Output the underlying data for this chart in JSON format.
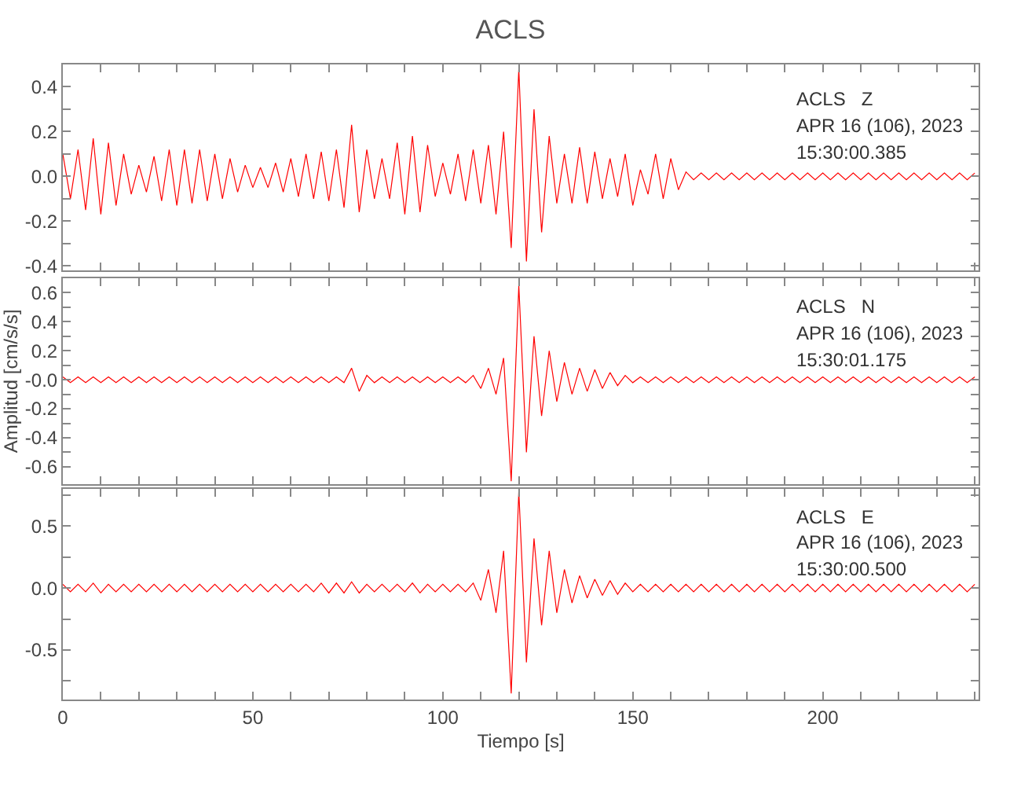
{
  "chart_data": [
    {
      "type": "line",
      "title": "ACLS",
      "annotations": [
        "ACLS   Z",
        "APR 16 (106), 2023",
        "15:30:00.385"
      ],
      "tick_labels": "y",
      "xlim": [
        0,
        241
      ],
      "xticks": [
        0,
        {
          "value": 10,
          "label": null
        },
        {
          "value": 20,
          "label": null
        },
        {
          "value": 30,
          "label": null
        },
        {
          "value": 40,
          "label": null
        },
        50,
        {
          "value": 60,
          "label": null
        },
        {
          "value": 70,
          "label": null
        },
        {
          "value": 80,
          "label": null
        },
        {
          "value": 90,
          "label": null
        },
        100,
        {
          "value": 110,
          "label": null
        },
        {
          "value": 120,
          "label": null
        },
        {
          "value": 130,
          "label": null
        },
        {
          "value": 140,
          "label": null
        },
        150,
        {
          "value": 160,
          "label": null
        },
        {
          "value": 170,
          "label": null
        },
        {
          "value": 180,
          "label": null
        },
        {
          "value": 190,
          "label": null
        },
        200,
        {
          "value": 210,
          "label": null
        },
        {
          "value": 220,
          "label": null
        },
        {
          "value": 230,
          "label": null
        },
        {
          "value": 240,
          "label": null
        }
      ],
      "ylim": [
        -0.42,
        0.5
      ],
      "yticks": [
        -0.4,
        {
          "value": -0.3,
          "label": null
        },
        -0.2,
        {
          "value": -0.1,
          "label": null
        },
        {
          "value": 0,
          "label": "0.0"
        },
        {
          "value": 0.1,
          "label": null
        },
        0.2,
        {
          "value": 0.3,
          "label": null
        },
        0.4
      ],
      "x": [
        0,
        2,
        4,
        6,
        8,
        10,
        12,
        14,
        16,
        18,
        20,
        22,
        24,
        26,
        28,
        30,
        32,
        34,
        36,
        38,
        40,
        42,
        44,
        46,
        48,
        50,
        52,
        54,
        56,
        58,
        60,
        62,
        64,
        66,
        68,
        70,
        72,
        74,
        76,
        78,
        80,
        82,
        84,
        86,
        88,
        90,
        92,
        94,
        96,
        98,
        100,
        102,
        104,
        106,
        108,
        110,
        112,
        114,
        116,
        118,
        120,
        122,
        124,
        126,
        128,
        130,
        132,
        134,
        136,
        138,
        140,
        142,
        144,
        146,
        148,
        150,
        152,
        154,
        156,
        158,
        160,
        162,
        164,
        166,
        168,
        170,
        172,
        174,
        176,
        178,
        180,
        182,
        184,
        186,
        188,
        190,
        192,
        194,
        196,
        198,
        200,
        202,
        204,
        206,
        208,
        210,
        212,
        214,
        216,
        218,
        220,
        222,
        224,
        226,
        228,
        230,
        232,
        234,
        236,
        238,
        240
      ],
      "series": [
        {
          "color": "#ff0000",
          "values": [
            0.1,
            -0.1,
            0.12,
            -0.15,
            0.17,
            -0.17,
            0.15,
            -0.13,
            0.1,
            -0.08,
            0.05,
            -0.07,
            0.09,
            -0.11,
            0.12,
            -0.13,
            0.12,
            -0.12,
            0.12,
            -0.11,
            0.1,
            -0.1,
            0.08,
            -0.07,
            0.05,
            -0.05,
            0.04,
            -0.05,
            0.06,
            -0.07,
            0.08,
            -0.09,
            0.1,
            -0.1,
            0.11,
            -0.11,
            0.12,
            -0.14,
            0.23,
            -0.16,
            0.12,
            -0.1,
            0.08,
            -0.1,
            0.15,
            -0.17,
            0.18,
            -0.16,
            0.14,
            -0.09,
            0.06,
            -0.08,
            0.1,
            -0.11,
            0.12,
            -0.12,
            0.14,
            -0.17,
            0.2,
            -0.32,
            0.48,
            -0.38,
            0.3,
            -0.25,
            0.18,
            -0.12,
            0.1,
            -0.12,
            0.13,
            -0.12,
            0.11,
            -0.1,
            0.08,
            -0.09,
            0.1,
            -0.13,
            0.03,
            -0.08,
            0.1,
            -0.1,
            0.08,
            -0.06,
            0.02,
            -0.015,
            0.015,
            -0.015,
            0.015,
            -0.015,
            0.015,
            -0.015,
            0.015,
            -0.015,
            0.015,
            -0.015,
            0.015,
            -0.015,
            0.015,
            -0.015,
            0.015,
            -0.015,
            0.015,
            -0.015,
            0.015,
            -0.015,
            0.015,
            -0.015,
            0.015,
            -0.015,
            0.015,
            -0.015,
            0.015,
            -0.015,
            0.015,
            -0.015,
            0.015,
            -0.015,
            0.015,
            -0.015,
            0.015,
            -0.015,
            0.015
          ]
        }
      ]
    },
    {
      "type": "line",
      "ylabel": "Amplitud [cm/s/s]",
      "annotations": [
        "ACLS   N",
        "APR 16 (106), 2023",
        "15:30:01.175"
      ],
      "tick_labels": "y",
      "xlim": [
        0,
        241
      ],
      "xticks": [
        0,
        {
          "value": 10,
          "label": null
        },
        {
          "value": 20,
          "label": null
        },
        {
          "value": 30,
          "label": null
        },
        {
          "value": 40,
          "label": null
        },
        50,
        {
          "value": 60,
          "label": null
        },
        {
          "value": 70,
          "label": null
        },
        {
          "value": 80,
          "label": null
        },
        {
          "value": 90,
          "label": null
        },
        100,
        {
          "value": 110,
          "label": null
        },
        {
          "value": 120,
          "label": null
        },
        {
          "value": 130,
          "label": null
        },
        {
          "value": 140,
          "label": null
        },
        150,
        {
          "value": 160,
          "label": null
        },
        {
          "value": 170,
          "label": null
        },
        {
          "value": 180,
          "label": null
        },
        {
          "value": 190,
          "label": null
        },
        200,
        {
          "value": 210,
          "label": null
        },
        {
          "value": 220,
          "label": null
        },
        {
          "value": 230,
          "label": null
        },
        {
          "value": 240,
          "label": null
        }
      ],
      "ylim": [
        -0.72,
        0.7
      ],
      "yticks": [
        -0.6,
        {
          "value": -0.5,
          "label": null
        },
        -0.4,
        {
          "value": -0.3,
          "label": null
        },
        -0.2,
        {
          "value": -0.1,
          "label": null
        },
        {
          "value": 0,
          "label": "-0.0"
        },
        {
          "value": 0.1,
          "label": null
        },
        0.2,
        {
          "value": 0.3,
          "label": null
        },
        0.4,
        {
          "value": 0.5,
          "label": null
        },
        0.6
      ],
      "x": [
        0,
        2,
        4,
        6,
        8,
        10,
        12,
        14,
        16,
        18,
        20,
        22,
        24,
        26,
        28,
        30,
        32,
        34,
        36,
        38,
        40,
        42,
        44,
        46,
        48,
        50,
        52,
        54,
        56,
        58,
        60,
        62,
        64,
        66,
        68,
        70,
        72,
        74,
        76,
        78,
        80,
        82,
        84,
        86,
        88,
        90,
        92,
        94,
        96,
        98,
        100,
        102,
        104,
        106,
        108,
        110,
        112,
        114,
        116,
        118,
        120,
        122,
        124,
        126,
        128,
        130,
        132,
        134,
        136,
        138,
        140,
        142,
        144,
        146,
        148,
        150,
        152,
        154,
        156,
        158,
        160,
        162,
        164,
        166,
        168,
        170,
        172,
        174,
        176,
        178,
        180,
        182,
        184,
        186,
        188,
        190,
        192,
        194,
        196,
        198,
        200,
        202,
        204,
        206,
        208,
        210,
        212,
        214,
        216,
        218,
        220,
        222,
        224,
        226,
        228,
        230,
        232,
        234,
        236,
        238,
        240
      ],
      "series": [
        {
          "color": "#ff0000",
          "values": [
            0.02,
            -0.02,
            0.02,
            -0.02,
            0.02,
            -0.02,
            0.02,
            -0.02,
            0.02,
            -0.02,
            0.02,
            -0.02,
            0.02,
            -0.02,
            0.02,
            -0.02,
            0.02,
            -0.02,
            0.02,
            -0.02,
            0.02,
            -0.02,
            0.02,
            -0.02,
            0.02,
            -0.02,
            0.02,
            -0.02,
            0.02,
            -0.02,
            0.02,
            -0.02,
            0.02,
            -0.02,
            0.02,
            -0.02,
            0.02,
            -0.02,
            0.08,
            -0.08,
            0.03,
            -0.02,
            0.02,
            -0.02,
            0.02,
            -0.02,
            0.02,
            -0.02,
            0.02,
            -0.02,
            0.02,
            -0.02,
            0.02,
            -0.02,
            0.03,
            -0.06,
            0.08,
            -0.1,
            0.15,
            -0.7,
            0.65,
            -0.5,
            0.3,
            -0.25,
            0.2,
            -0.15,
            0.12,
            -0.1,
            0.08,
            -0.08,
            0.07,
            -0.06,
            0.05,
            -0.04,
            0.03,
            -0.02,
            0.02,
            -0.02,
            0.02,
            -0.02,
            0.02,
            -0.02,
            0.02,
            -0.02,
            0.02,
            -0.02,
            0.02,
            -0.02,
            0.02,
            -0.02,
            0.02,
            -0.02,
            0.02,
            -0.02,
            0.02,
            -0.02,
            0.02,
            -0.02,
            0.02,
            -0.02,
            0.02,
            -0.02,
            0.02,
            -0.02,
            0.02,
            -0.02,
            0.02,
            -0.02,
            0.02,
            -0.02,
            0.02,
            -0.02,
            0.02,
            -0.02,
            0.02,
            -0.02,
            0.02,
            -0.02,
            0.02,
            -0.02,
            0.02
          ]
        }
      ]
    },
    {
      "type": "line",
      "xlabel": "Tiempo [s]",
      "annotations": [
        "ACLS   E",
        "APR 16 (106), 2023",
        "15:30:00.500"
      ],
      "xlim": [
        0,
        241
      ],
      "xticks": [
        0,
        {
          "value": 10,
          "label": null
        },
        {
          "value": 20,
          "label": null
        },
        {
          "value": 30,
          "label": null
        },
        {
          "value": 40,
          "label": null
        },
        50,
        {
          "value": 60,
          "label": null
        },
        {
          "value": 70,
          "label": null
        },
        {
          "value": 80,
          "label": null
        },
        {
          "value": 90,
          "label": null
        },
        100,
        {
          "value": 110,
          "label": null
        },
        {
          "value": 120,
          "label": null
        },
        {
          "value": 130,
          "label": null
        },
        {
          "value": 140,
          "label": null
        },
        150,
        {
          "value": 160,
          "label": null
        },
        {
          "value": 170,
          "label": null
        },
        {
          "value": 180,
          "label": null
        },
        {
          "value": 190,
          "label": null
        },
        200,
        {
          "value": 210,
          "label": null
        },
        {
          "value": 220,
          "label": null
        },
        {
          "value": 230,
          "label": null
        },
        {
          "value": 240,
          "label": null
        }
      ],
      "ylim": [
        -0.9,
        0.8
      ],
      "yticks": [
        {
          "value": -0.75,
          "label": null
        },
        -0.5,
        {
          "value": -0.25,
          "label": null
        },
        {
          "value": 0,
          "label": "0.0"
        },
        {
          "value": 0.25,
          "label": null
        },
        0.5,
        {
          "value": 0.75,
          "label": null
        }
      ],
      "x": [
        0,
        2,
        4,
        6,
        8,
        10,
        12,
        14,
        16,
        18,
        20,
        22,
        24,
        26,
        28,
        30,
        32,
        34,
        36,
        38,
        40,
        42,
        44,
        46,
        48,
        50,
        52,
        54,
        56,
        58,
        60,
        62,
        64,
        66,
        68,
        70,
        72,
        74,
        76,
        78,
        80,
        82,
        84,
        86,
        88,
        90,
        92,
        94,
        96,
        98,
        100,
        102,
        104,
        106,
        108,
        110,
        112,
        114,
        116,
        118,
        120,
        122,
        124,
        126,
        128,
        130,
        132,
        134,
        136,
        138,
        140,
        142,
        144,
        146,
        148,
        150,
        152,
        154,
        156,
        158,
        160,
        162,
        164,
        166,
        168,
        170,
        172,
        174,
        176,
        178,
        180,
        182,
        184,
        186,
        188,
        190,
        192,
        194,
        196,
        198,
        200,
        202,
        204,
        206,
        208,
        210,
        212,
        214,
        216,
        218,
        220,
        222,
        224,
        226,
        228,
        230,
        232,
        234,
        236,
        238,
        240
      ],
      "series": [
        {
          "color": "#ff0000",
          "values": [
            0.03,
            -0.03,
            0.03,
            -0.03,
            0.04,
            -0.04,
            0.03,
            -0.03,
            0.03,
            -0.03,
            0.03,
            -0.03,
            0.03,
            -0.03,
            0.03,
            -0.03,
            0.03,
            -0.03,
            0.03,
            -0.03,
            0.03,
            -0.03,
            0.03,
            -0.03,
            0.03,
            -0.03,
            0.03,
            -0.03,
            0.03,
            -0.03,
            0.03,
            -0.03,
            0.03,
            -0.03,
            0.04,
            -0.04,
            0.04,
            -0.04,
            0.05,
            -0.04,
            0.03,
            -0.03,
            0.03,
            -0.03,
            0.03,
            -0.03,
            0.04,
            -0.04,
            0.03,
            -0.03,
            0.03,
            -0.03,
            0.03,
            -0.03,
            0.04,
            -0.1,
            0.15,
            -0.2,
            0.3,
            -0.85,
            0.78,
            -0.6,
            0.4,
            -0.3,
            0.3,
            -0.2,
            0.15,
            -0.12,
            0.1,
            -0.08,
            0.07,
            -0.06,
            0.06,
            -0.05,
            0.04,
            -0.03,
            0.03,
            -0.03,
            0.03,
            -0.03,
            0.03,
            -0.03,
            0.03,
            -0.03,
            0.03,
            -0.03,
            0.03,
            -0.03,
            0.03,
            -0.03,
            0.03,
            -0.03,
            0.03,
            -0.03,
            0.03,
            -0.03,
            0.03,
            -0.03,
            0.03,
            -0.03,
            0.03,
            -0.03,
            0.03,
            -0.03,
            0.03,
            -0.03,
            0.03,
            -0.03,
            0.03,
            -0.03,
            0.03,
            -0.03,
            0.03,
            -0.03,
            0.03,
            -0.03,
            0.03,
            -0.03,
            0.03,
            -0.03,
            0.03
          ]
        }
      ]
    }
  ]
}
